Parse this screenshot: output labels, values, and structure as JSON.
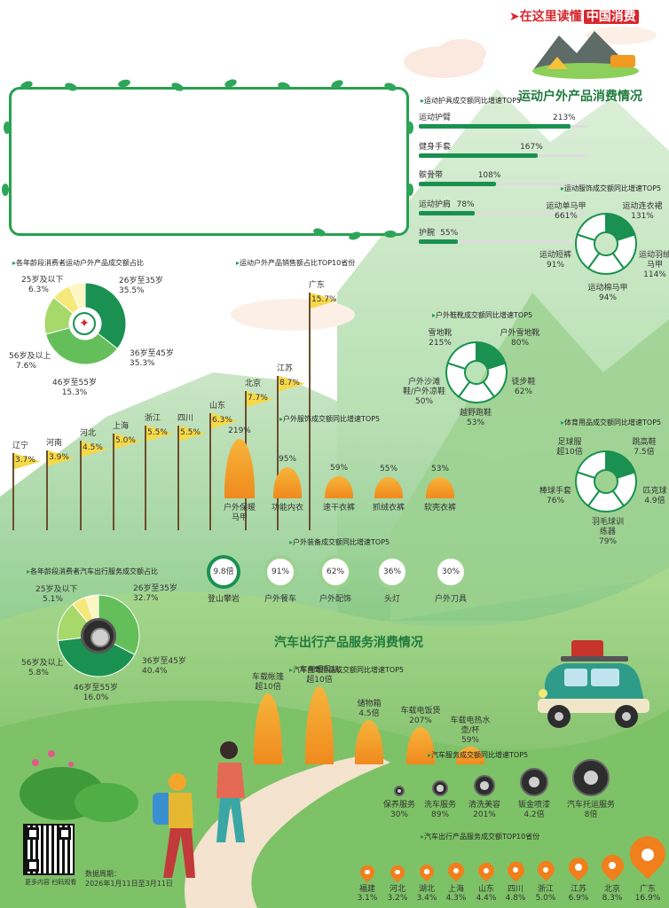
{
  "header": {
    "slogan_prefix": "在这里读懂",
    "slogan_brand": "中国消费"
  },
  "titles": {
    "outdoor": "运动户外产品消费情况",
    "auto": "汽车出行产品服务消费情况"
  },
  "footer": {
    "qr_caption": "更多内容 扫码观看",
    "period_label": "数据周期：",
    "period_value": "2026年1月11日至3月11日"
  },
  "colors": {
    "dark_green": "#1a9150",
    "light_green": "#7fcf73",
    "yellow": "#f6e87a",
    "orange": "#f29a22",
    "bar_bg": "#dddddd"
  },
  "chart_data": [
    {
      "id": "gear",
      "type": "bar",
      "title": "运动护具成交额同比增速TOP5",
      "categories": [
        "运动护臂",
        "健身手套",
        "髌骨带",
        "运动护肩",
        "护腕"
      ],
      "values": [
        213,
        167,
        108,
        78,
        55
      ],
      "value_labels": [
        "213%",
        "167%",
        "108%",
        "78%",
        "55%"
      ]
    },
    {
      "id": "age_outdoor",
      "type": "pie",
      "title": "各年龄段消费者运动户外产品成交额占比",
      "categories": [
        "26岁至35岁",
        "36岁至45岁",
        "46岁至55岁",
        "56岁及以上",
        "25岁及以下"
      ],
      "values": [
        35.5,
        35.3,
        15.3,
        7.6,
        6.3
      ],
      "value_labels": [
        "35.5%",
        "35.3%",
        "15.3%",
        "7.6%",
        "6.3%"
      ],
      "colors": [
        "#1a9150",
        "#64bf5b",
        "#a6d96a",
        "#f6e87a",
        "#fbf6c2"
      ]
    },
    {
      "id": "provinces_outdoor",
      "type": "bar",
      "title": "运动户外产品销售额占比TOP10省份",
      "categories": [
        "辽宁",
        "河南",
        "河北",
        "上海",
        "浙江",
        "四川",
        "山东",
        "北京",
        "江苏",
        "广东"
      ],
      "values": [
        3.7,
        3.9,
        4.5,
        5.0,
        5.5,
        5.5,
        6.3,
        7.7,
        8.7,
        15.7
      ],
      "value_labels": [
        "3.7%",
        "3.9%",
        "4.5%",
        "5.0%",
        "5.5%",
        "5.5%",
        "6.3%",
        "7.7%",
        "8.7%",
        "15.7%"
      ]
    },
    {
      "id": "apparel",
      "type": "bar",
      "title": "运动服饰成交额同比增速TOP5",
      "categories": [
        "运动单马甲",
        "运动连衣裙",
        "运动羽绒马甲",
        "运动棉马甲",
        "运动短裤"
      ],
      "values": [
        661,
        131,
        114,
        94,
        91
      ],
      "value_labels": [
        "661%",
        "131%",
        "114%",
        "94%",
        "91%"
      ]
    },
    {
      "id": "shoes",
      "type": "bar",
      "title": "户外鞋靴成交额同比增速TOP5",
      "categories": [
        "雪地靴",
        "户外雪地靴",
        "徒步鞋",
        "越野跑鞋",
        "户外沙滩鞋/户外凉鞋"
      ],
      "values": [
        215,
        80,
        62,
        53,
        50
      ],
      "value_labels": [
        "215%",
        "80%",
        "62%",
        "53%",
        "50%"
      ]
    },
    {
      "id": "outdoor_apparel",
      "type": "bar",
      "title": "户外服饰成交额同比增速TOP5",
      "categories": [
        "户外保暖马甲",
        "功能内衣",
        "速干衣裤",
        "抓绒衣裤",
        "软壳衣裤"
      ],
      "values": [
        219,
        95,
        59,
        55,
        53
      ],
      "value_labels": [
        "219%",
        "95%",
        "59%",
        "55%",
        "53%"
      ]
    },
    {
      "id": "sports_goods",
      "type": "bar",
      "title": "体育用品成交额同比增速TOP5",
      "categories": [
        "足球服",
        "跳高鞋",
        "匹克球",
        "羽毛球训练器",
        "棒球手套"
      ],
      "value_labels": [
        "超10倍",
        "7.5倍",
        "4.9倍",
        "79%",
        "76%"
      ]
    },
    {
      "id": "equipment",
      "type": "bar",
      "title": "户外装备成交额同比增速TOP5",
      "categories": [
        "登山攀岩",
        "户外餐车",
        "户外配饰",
        "头灯",
        "户外刀具"
      ],
      "value_labels": [
        "9.8倍",
        "91%",
        "62%",
        "36%",
        "30%"
      ]
    },
    {
      "id": "age_auto",
      "type": "pie",
      "title": "各年龄段消费者汽车出行服务成交额占比",
      "categories": [
        "26岁至35岁",
        "36岁至45岁",
        "46岁至55岁",
        "56岁及以上",
        "25岁及以下"
      ],
      "values": [
        32.7,
        40.4,
        16.0,
        5.8,
        5.1
      ],
      "value_labels": [
        "32.7%",
        "40.4%",
        "16.0%",
        "5.8%",
        "5.1%"
      ],
      "colors": [
        "#64bf5b",
        "#1a9150",
        "#a6d96a",
        "#f6e87a",
        "#fbf6c2"
      ]
    },
    {
      "id": "car_products",
      "type": "bar",
      "title": "汽车自驾用品成交额同比增速TOP5",
      "categories": [
        "车载帐篷",
        "车用暖风机",
        "储物箱",
        "车载电饭煲",
        "车载电热水壶/杯"
      ],
      "value_labels": [
        "超10倍",
        "超10倍",
        "4.5倍",
        "207%",
        "59%"
      ]
    },
    {
      "id": "car_services",
      "type": "bar",
      "title": "汽车服务成交额同比增速TOP5",
      "categories": [
        "保养服务",
        "洗车服务",
        "清洗美容",
        "钣金喷漆",
        "汽车托运服务"
      ],
      "value_labels": [
        "30%",
        "89%",
        "201%",
        "4.2倍",
        "8倍"
      ]
    },
    {
      "id": "provinces_auto",
      "type": "bar",
      "title": "汽车出行产品服务成交额TOP10省份",
      "categories": [
        "福建",
        "河北",
        "湖北",
        "上海",
        "山东",
        "四川",
        "浙江",
        "江苏",
        "北京",
        "广东"
      ],
      "values": [
        3.1,
        3.2,
        3.4,
        4.3,
        4.4,
        4.8,
        5.0,
        6.9,
        8.3,
        16.9
      ],
      "value_labels": [
        "3.1%",
        "3.2%",
        "3.4%",
        "4.3%",
        "4.4%",
        "4.8%",
        "5.0%",
        "6.9%",
        "8.3%",
        "16.9%"
      ]
    }
  ]
}
